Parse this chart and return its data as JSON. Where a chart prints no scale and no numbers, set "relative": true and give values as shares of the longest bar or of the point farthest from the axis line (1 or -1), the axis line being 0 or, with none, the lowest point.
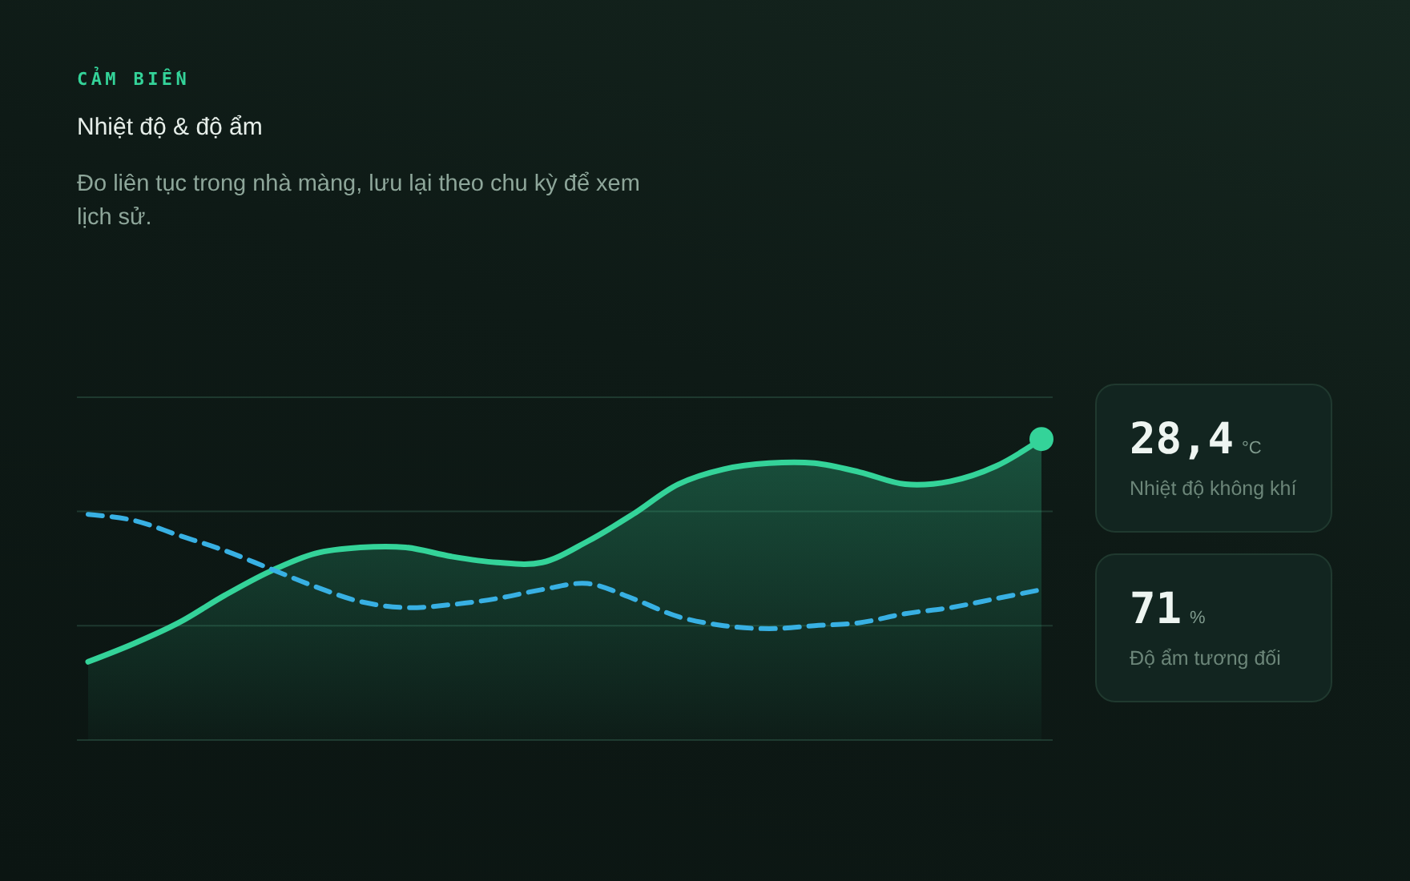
{
  "chart_data": {
    "type": "line",
    "title": "Nhiệt độ & độ ẩm",
    "subtitle": "Đo liên tục trong nhà màng, lưu lại theo chu kỳ để xem lịch sử.",
    "annotations": [
      "CẢM BIẾN",
      "28,4",
      "°C",
      "Nhiệt độ không khí",
      "71",
      "%",
      "Độ ẩm tương đối"
    ],
    "relative": true,
    "ref_lines": [
      {
        "axis": "y",
        "value": 0.38,
        "color": "#1e392f"
      },
      {
        "axis": "y",
        "value": 0.76,
        "color": "#1e392f"
      }
    ],
    "categories": [
      null,
      null,
      null,
      null,
      null,
      null,
      null,
      null,
      null,
      null,
      null,
      null,
      null,
      null,
      null,
      null,
      null,
      null,
      null,
      null,
      null,
      null
    ],
    "series": [
      {
        "type": "area",
        "color": "#34d399",
        "values": [
          0.26,
          0.32,
          0.39,
          0.48,
          0.56,
          0.62,
          0.64,
          0.64,
          0.61,
          0.59,
          0.59,
          0.66,
          0.75,
          0.85,
          0.9,
          0.92,
          0.92,
          0.89,
          0.85,
          0.86,
          0.91,
          1
        ]
      },
      {
        "type": "line",
        "color": "#38b0e3",
        "line_style": "dashed",
        "values": [
          0.75,
          0.73,
          0.68,
          0.63,
          0.57,
          0.51,
          0.46,
          0.44,
          0.45,
          0.47,
          0.5,
          0.52,
          0.47,
          0.41,
          0.38,
          0.37,
          0.38,
          0.39,
          0.42,
          0.44,
          0.47,
          0.5
        ]
      }
    ]
  }
}
